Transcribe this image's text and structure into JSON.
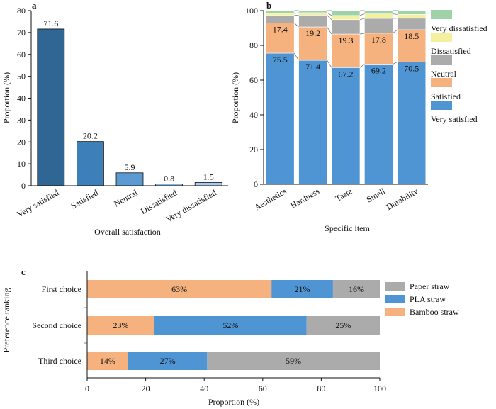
{
  "chart_data": [
    {
      "panel": "a",
      "type": "bar",
      "categories": [
        "Very satisfied",
        "Satisfied",
        "Neutral",
        "Dissatisfied",
        "Very dissatisfied"
      ],
      "values": [
        71.6,
        20.2,
        5.9,
        0.8,
        1.5
      ],
      "value_labels": [
        "71.6",
        "20.2",
        "5.9",
        "0.8",
        "1.5"
      ],
      "colors": [
        "#2f6694",
        "#3d7fb8",
        "#5b9ad2",
        "#86b5e0",
        "#adc9ea"
      ],
      "xlabel": "Overall satisfaction",
      "ylabel": "Proportion (%)",
      "ylim": [
        0,
        80
      ],
      "yticks": [
        0,
        10,
        20,
        30,
        40,
        50,
        60,
        70,
        80
      ],
      "ytick_labels": [
        "0",
        "10",
        "20",
        "30",
        "40",
        "50",
        "60",
        "70",
        "80"
      ]
    },
    {
      "panel": "b",
      "type": "bar",
      "stacked": true,
      "categories": [
        "Aesthetics",
        "Hardness",
        "Taste",
        "Smell",
        "Durability"
      ],
      "series": [
        {
          "name": "Very satisfied",
          "values": [
            75.5,
            71.4,
            67.2,
            69.2,
            70.5
          ],
          "labels": [
            "75.5",
            "71.4",
            "67.2",
            "69.2",
            "70.5"
          ],
          "color": "#4f94d3"
        },
        {
          "name": "Satisfied",
          "values": [
            17.4,
            19.2,
            19.3,
            17.8,
            18.5
          ],
          "labels": [
            "17.4",
            "19.2",
            "19.3",
            "17.8",
            "18.5"
          ],
          "color": "#f6b27e"
        },
        {
          "name": "Neutral",
          "values": [
            4.3,
            6.8,
            8.3,
            8.5,
            6.6
          ],
          "color": "#ababab"
        },
        {
          "name": "Dissatisfied",
          "values": [
            1.2,
            1.4,
            2.4,
            2.6,
            2.2
          ],
          "color": "#f3f0a2"
        },
        {
          "name": "Very dissatisfied",
          "values": [
            1.6,
            1.2,
            2.8,
            1.9,
            2.2
          ],
          "color": "#9fd3a7"
        }
      ],
      "legend_entries": [
        "Very dissatisfied",
        "Dissatisfied",
        "Neutral",
        "Satisfied",
        "Very satisfied"
      ],
      "legend_colors": [
        "#9fd3a7",
        "#f3f0a2",
        "#ababab",
        "#f6b27e",
        "#4f94d3"
      ],
      "legend_position": "right",
      "xlabel": "Specific item",
      "ylabel": "Proportion (%)",
      "ylim": [
        0,
        100
      ],
      "yticks": [
        0,
        20,
        40,
        60,
        80,
        100
      ],
      "ytick_labels": [
        "0",
        "20",
        "40",
        "60",
        "80",
        "100"
      ]
    },
    {
      "panel": "c",
      "type": "bar",
      "orientation": "horizontal",
      "stacked": true,
      "categories": [
        "First choice",
        "Second choice",
        "Third choice"
      ],
      "series": [
        {
          "name": "Bamboo straw",
          "values": [
            63,
            23,
            14
          ],
          "labels": [
            "63%",
            "23%",
            "14%"
          ],
          "color": "#f6b27e"
        },
        {
          "name": "PLA straw",
          "values": [
            21,
            52,
            27
          ],
          "labels": [
            "21%",
            "52%",
            "27%"
          ],
          "color": "#4f94d3"
        },
        {
          "name": "Paper straw",
          "values": [
            16,
            25,
            59
          ],
          "labels": [
            "16%",
            "25%",
            "59%"
          ],
          "color": "#ababab"
        }
      ],
      "legend_entries": [
        "Paper straw",
        "PLA straw",
        "Bamboo straw"
      ],
      "legend_colors": [
        "#ababab",
        "#4f94d3",
        "#f6b27e"
      ],
      "legend_position": "right",
      "xlabel": "Proportion (%)",
      "ylabel": "Preference ranking",
      "xlim": [
        0,
        100
      ],
      "xticks": [
        0,
        20,
        40,
        60,
        80,
        100
      ],
      "xtick_labels": [
        "0",
        "20",
        "40",
        "60",
        "80",
        "100"
      ]
    }
  ]
}
